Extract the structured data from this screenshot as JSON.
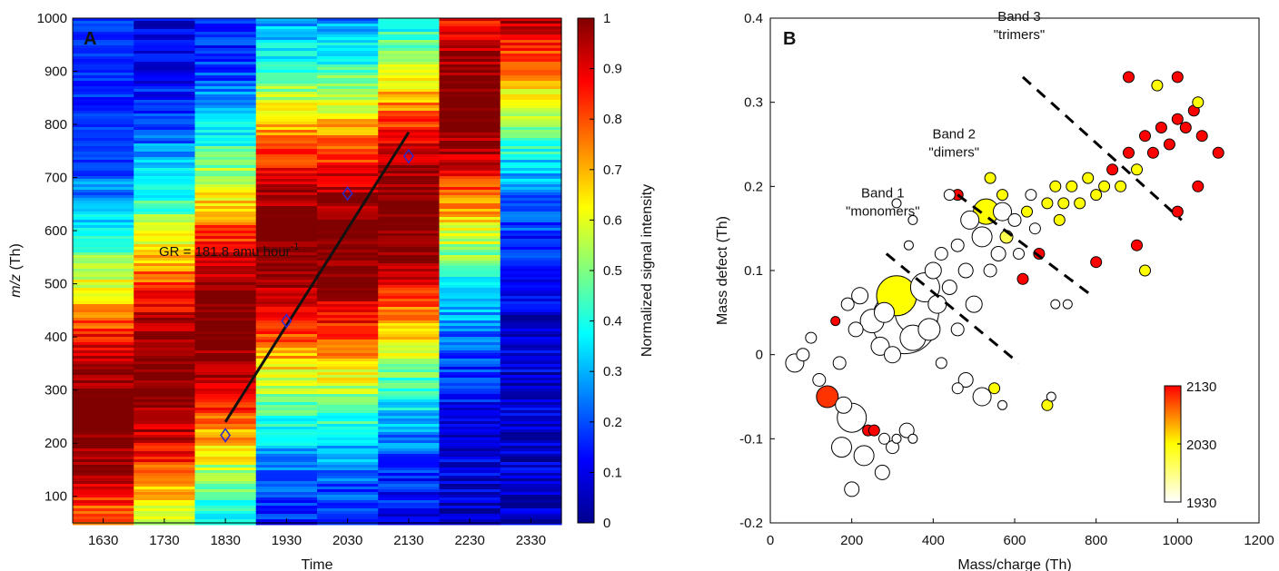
{
  "chart_data": [
    {
      "panel": "A",
      "type": "heatmap",
      "xlabel": "Time",
      "ylabel_italic": "m/z",
      "ylabel_rest": " (Th)",
      "x_ticks": [
        "1630",
        "1730",
        "1830",
        "1930",
        "2030",
        "2130",
        "2230",
        "2330"
      ],
      "y_ticks": [
        100,
        200,
        300,
        400,
        500,
        600,
        700,
        800,
        900,
        1000
      ],
      "ylim": [
        50,
        1000
      ],
      "colorbar": {
        "label": "Normalized signal intensity",
        "ticks": [
          0,
          0.1,
          0.2,
          0.3,
          0.4,
          0.5,
          0.6,
          0.7,
          0.8,
          0.9,
          1
        ],
        "range": [
          0,
          1
        ],
        "colormap": "jet"
      },
      "peak_points": [
        {
          "time": "1830",
          "mz": 215
        },
        {
          "time": "1930",
          "mz": 430
        },
        {
          "time": "2030",
          "mz": 670
        },
        {
          "time": "2130",
          "mz": 740
        }
      ],
      "fit_line": {
        "from": {
          "time_index": 2.0,
          "mz": 240
        },
        "to": {
          "time_index": 5.0,
          "mz": 785
        }
      },
      "annotation": {
        "text": "GR = 181.8 amu hour",
        "superscript": "-1"
      },
      "marker_color": "#2a2ad0",
      "line_color": "#111111"
    },
    {
      "panel": "B",
      "type": "scatter",
      "xlabel": "Mass/charge (Th)",
      "ylabel": "Mass defect (Th)",
      "xlim": [
        0,
        1200
      ],
      "ylim": [
        -0.2,
        0.4
      ],
      "x_ticks": [
        0,
        200,
        400,
        600,
        800,
        1000,
        1200
      ],
      "y_ticks": [
        -0.2,
        -0.1,
        0,
        0.1,
        0.2,
        0.3,
        0.4
      ],
      "colorbar": {
        "range": [
          1930,
          2130
        ],
        "ticks": [
          "2130",
          "2030",
          "1930"
        ],
        "colors": [
          "#ffffff",
          "#ffff00",
          "#ff0000"
        ]
      },
      "bands": [
        {
          "label": "Band 1",
          "sublabel": "\"monomers\"",
          "line": [
            [
              285,
              0.12
            ],
            [
              610,
              -0.01
            ]
          ]
        },
        {
          "label": "Band 2",
          "sublabel": "\"dimers\"",
          "line": [
            [
              460,
              0.19
            ],
            [
              790,
              0.07
            ]
          ]
        },
        {
          "label": "Band 3",
          "sublabel": "\"trimers\"",
          "line": [
            [
              620,
              0.33
            ],
            [
              1010,
              0.16
            ]
          ]
        }
      ],
      "points": [
        {
          "x": 60,
          "y": -0.01,
          "t": 1930,
          "s": 10
        },
        {
          "x": 80,
          "y": 0.0,
          "t": 1930,
          "s": 7
        },
        {
          "x": 100,
          "y": 0.02,
          "t": 1930,
          "s": 6
        },
        {
          "x": 120,
          "y": -0.03,
          "t": 1930,
          "s": 7
        },
        {
          "x": 140,
          "y": -0.05,
          "t": 2110,
          "s": 12
        },
        {
          "x": 160,
          "y": 0.04,
          "t": 2130,
          "s": 5
        },
        {
          "x": 170,
          "y": -0.01,
          "t": 1930,
          "s": 7
        },
        {
          "x": 180,
          "y": -0.06,
          "t": 1930,
          "s": 9
        },
        {
          "x": 190,
          "y": 0.06,
          "t": 1930,
          "s": 7
        },
        {
          "x": 200,
          "y": -0.075,
          "t": 1930,
          "s": 16
        },
        {
          "x": 210,
          "y": 0.03,
          "t": 1930,
          "s": 8
        },
        {
          "x": 220,
          "y": 0.07,
          "t": 1930,
          "s": 9
        },
        {
          "x": 175,
          "y": -0.11,
          "t": 1930,
          "s": 11
        },
        {
          "x": 200,
          "y": -0.16,
          "t": 1930,
          "s": 8
        },
        {
          "x": 230,
          "y": -0.12,
          "t": 1930,
          "s": 11
        },
        {
          "x": 240,
          "y": -0.09,
          "t": 2130,
          "s": 6
        },
        {
          "x": 255,
          "y": -0.09,
          "t": 2130,
          "s": 6
        },
        {
          "x": 275,
          "y": -0.14,
          "t": 1930,
          "s": 8
        },
        {
          "x": 280,
          "y": -0.1,
          "t": 1930,
          "s": 6
        },
        {
          "x": 300,
          "y": -0.11,
          "t": 1930,
          "s": 7
        },
        {
          "x": 310,
          "y": -0.1,
          "t": 1930,
          "s": 5
        },
        {
          "x": 335,
          "y": -0.09,
          "t": 1930,
          "s": 8
        },
        {
          "x": 350,
          "y": -0.1,
          "t": 1930,
          "s": 5
        },
        {
          "x": 250,
          "y": 0.04,
          "t": 1930,
          "s": 13
        },
        {
          "x": 270,
          "y": 0.01,
          "t": 1930,
          "s": 10
        },
        {
          "x": 280,
          "y": 0.05,
          "t": 1930,
          "s": 11
        },
        {
          "x": 300,
          "y": 0.0,
          "t": 1930,
          "s": 9
        },
        {
          "x": 310,
          "y": 0.07,
          "t": 2030,
          "s": 22
        },
        {
          "x": 330,
          "y": 0.04,
          "t": 1930,
          "s": 36
        },
        {
          "x": 350,
          "y": 0.02,
          "t": 1930,
          "s": 14
        },
        {
          "x": 360,
          "y": 0.05,
          "t": 1930,
          "s": 24
        },
        {
          "x": 380,
          "y": 0.08,
          "t": 1930,
          "s": 16
        },
        {
          "x": 390,
          "y": 0.03,
          "t": 1930,
          "s": 12
        },
        {
          "x": 400,
          "y": 0.1,
          "t": 1930,
          "s": 9
        },
        {
          "x": 410,
          "y": 0.06,
          "t": 1930,
          "s": 10
        },
        {
          "x": 420,
          "y": 0.12,
          "t": 1930,
          "s": 7
        },
        {
          "x": 420,
          "y": -0.01,
          "t": 1930,
          "s": 6
        },
        {
          "x": 440,
          "y": 0.08,
          "t": 1930,
          "s": 8
        },
        {
          "x": 460,
          "y": 0.13,
          "t": 1930,
          "s": 7
        },
        {
          "x": 460,
          "y": 0.03,
          "t": 1930,
          "s": 7
        },
        {
          "x": 480,
          "y": 0.1,
          "t": 1930,
          "s": 8
        },
        {
          "x": 490,
          "y": 0.16,
          "t": 1930,
          "s": 10
        },
        {
          "x": 500,
          "y": 0.06,
          "t": 1930,
          "s": 9
        },
        {
          "x": 520,
          "y": 0.14,
          "t": 1930,
          "s": 11
        },
        {
          "x": 530,
          "y": 0.17,
          "t": 2030,
          "s": 14
        },
        {
          "x": 540,
          "y": 0.1,
          "t": 1930,
          "s": 7
        },
        {
          "x": 560,
          "y": 0.12,
          "t": 1930,
          "s": 8
        },
        {
          "x": 570,
          "y": 0.17,
          "t": 1930,
          "s": 10
        },
        {
          "x": 580,
          "y": 0.14,
          "t": 2000,
          "s": 7
        },
        {
          "x": 600,
          "y": 0.16,
          "t": 1930,
          "s": 7
        },
        {
          "x": 610,
          "y": 0.12,
          "t": 1930,
          "s": 6
        },
        {
          "x": 620,
          "y": 0.09,
          "t": 2130,
          "s": 6
        },
        {
          "x": 630,
          "y": 0.17,
          "t": 2030,
          "s": 6
        },
        {
          "x": 640,
          "y": 0.19,
          "t": 1930,
          "s": 6
        },
        {
          "x": 650,
          "y": 0.15,
          "t": 1930,
          "s": 6
        },
        {
          "x": 660,
          "y": 0.12,
          "t": 2130,
          "s": 6
        },
        {
          "x": 680,
          "y": 0.18,
          "t": 2030,
          "s": 6
        },
        {
          "x": 700,
          "y": 0.2,
          "t": 2030,
          "s": 6
        },
        {
          "x": 710,
          "y": 0.16,
          "t": 2030,
          "s": 6
        },
        {
          "x": 720,
          "y": 0.18,
          "t": 2030,
          "s": 6
        },
        {
          "x": 740,
          "y": 0.2,
          "t": 2030,
          "s": 6
        },
        {
          "x": 760,
          "y": 0.18,
          "t": 2030,
          "s": 6
        },
        {
          "x": 780,
          "y": 0.21,
          "t": 2030,
          "s": 6
        },
        {
          "x": 800,
          "y": 0.19,
          "t": 2030,
          "s": 6
        },
        {
          "x": 820,
          "y": 0.2,
          "t": 2030,
          "s": 6
        },
        {
          "x": 840,
          "y": 0.22,
          "t": 2130,
          "s": 6
        },
        {
          "x": 860,
          "y": 0.2,
          "t": 2030,
          "s": 6
        },
        {
          "x": 880,
          "y": 0.24,
          "t": 2130,
          "s": 6
        },
        {
          "x": 900,
          "y": 0.22,
          "t": 2030,
          "s": 6
        },
        {
          "x": 920,
          "y": 0.26,
          "t": 2130,
          "s": 6
        },
        {
          "x": 940,
          "y": 0.24,
          "t": 2130,
          "s": 6
        },
        {
          "x": 960,
          "y": 0.27,
          "t": 2130,
          "s": 6
        },
        {
          "x": 980,
          "y": 0.25,
          "t": 2130,
          "s": 6
        },
        {
          "x": 1000,
          "y": 0.28,
          "t": 2130,
          "s": 6
        },
        {
          "x": 1020,
          "y": 0.27,
          "t": 2130,
          "s": 6
        },
        {
          "x": 1040,
          "y": 0.29,
          "t": 2130,
          "s": 6
        },
        {
          "x": 1060,
          "y": 0.26,
          "t": 2130,
          "s": 6
        },
        {
          "x": 1100,
          "y": 0.24,
          "t": 2130,
          "s": 6
        },
        {
          "x": 880,
          "y": 0.33,
          "t": 2130,
          "s": 6
        },
        {
          "x": 950,
          "y": 0.32,
          "t": 2030,
          "s": 6
        },
        {
          "x": 1000,
          "y": 0.33,
          "t": 2130,
          "s": 6
        },
        {
          "x": 1050,
          "y": 0.3,
          "t": 2030,
          "s": 6
        },
        {
          "x": 1050,
          "y": 0.2,
          "t": 2130,
          "s": 6
        },
        {
          "x": 1000,
          "y": 0.17,
          "t": 2130,
          "s": 6
        },
        {
          "x": 920,
          "y": 0.1,
          "t": 2030,
          "s": 6
        },
        {
          "x": 900,
          "y": 0.13,
          "t": 2130,
          "s": 6
        },
        {
          "x": 800,
          "y": 0.11,
          "t": 2130,
          "s": 6
        },
        {
          "x": 700,
          "y": 0.06,
          "t": 1930,
          "s": 5
        },
        {
          "x": 730,
          "y": 0.06,
          "t": 1930,
          "s": 5
        },
        {
          "x": 690,
          "y": -0.05,
          "t": 1930,
          "s": 5
        },
        {
          "x": 680,
          "y": -0.06,
          "t": 2030,
          "s": 6
        },
        {
          "x": 570,
          "y": -0.06,
          "t": 1930,
          "s": 5
        },
        {
          "x": 520,
          "y": -0.05,
          "t": 1930,
          "s": 10
        },
        {
          "x": 480,
          "y": -0.03,
          "t": 1930,
          "s": 8
        },
        {
          "x": 550,
          "y": -0.04,
          "t": 2030,
          "s": 6
        },
        {
          "x": 460,
          "y": -0.04,
          "t": 1930,
          "s": 6
        },
        {
          "x": 310,
          "y": 0.18,
          "t": 1930,
          "s": 5
        },
        {
          "x": 340,
          "y": 0.13,
          "t": 1930,
          "s": 5
        },
        {
          "x": 570,
          "y": 0.19,
          "t": 2030,
          "s": 6
        },
        {
          "x": 540,
          "y": 0.21,
          "t": 2030,
          "s": 6
        },
        {
          "x": 460,
          "y": 0.19,
          "t": 2130,
          "s": 6
        },
        {
          "x": 440,
          "y": 0.19,
          "t": 1930,
          "s": 6
        },
        {
          "x": 350,
          "y": 0.16,
          "t": 1930,
          "s": 5
        }
      ]
    }
  ]
}
